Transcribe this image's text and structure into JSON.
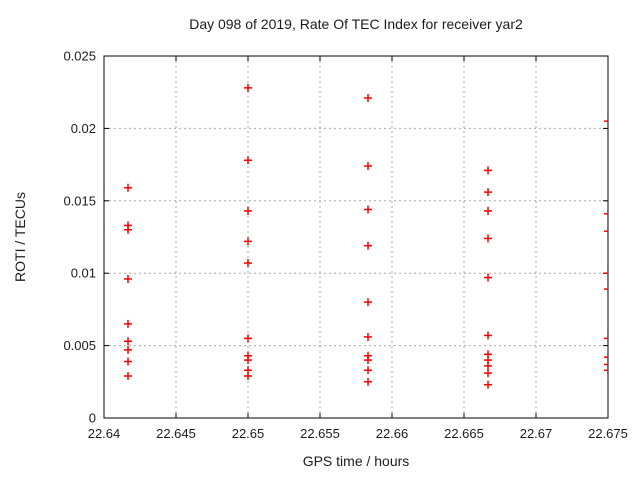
{
  "chart_data": {
    "type": "scatter",
    "title": "Day 098 of 2019, Rate Of TEC Index for receiver yar2",
    "xlabel": "GPS time / hours",
    "ylabel": "ROTI / TECUs",
    "xlim": [
      22.64,
      22.675
    ],
    "ylim": [
      0,
      0.025
    ],
    "xtick_values": [
      22.64,
      22.645,
      22.65,
      22.655,
      22.66,
      22.665,
      22.67,
      22.675
    ],
    "xtick_labels": [
      "22.64",
      "22.645",
      "22.65",
      "22.655",
      "22.66",
      "22.665",
      "22.67",
      "22.675"
    ],
    "ytick_values": [
      0,
      0.005,
      0.01,
      0.015,
      0.02,
      0.025
    ],
    "ytick_labels": [
      "0",
      "0.005",
      "0.01",
      "0.015",
      "0.02",
      "0.025"
    ],
    "grid": true,
    "legend": "none",
    "marker": "plus",
    "marker_color": "#ff0000",
    "series": [
      {
        "name": "ROTI",
        "points": [
          [
            22.641667,
            0.0159
          ],
          [
            22.641667,
            0.0133
          ],
          [
            22.641667,
            0.013
          ],
          [
            22.641667,
            0.0096
          ],
          [
            22.641667,
            0.0065
          ],
          [
            22.641667,
            0.0053
          ],
          [
            22.641667,
            0.0047
          ],
          [
            22.641667,
            0.0039
          ],
          [
            22.641667,
            0.0029
          ],
          [
            22.65,
            0.0228
          ],
          [
            22.65,
            0.0178
          ],
          [
            22.65,
            0.0143
          ],
          [
            22.65,
            0.0122
          ],
          [
            22.65,
            0.0107
          ],
          [
            22.65,
            0.0055
          ],
          [
            22.65,
            0.0043
          ],
          [
            22.65,
            0.004
          ],
          [
            22.65,
            0.0033
          ],
          [
            22.65,
            0.0029
          ],
          [
            22.658333,
            0.0221
          ],
          [
            22.658333,
            0.0174
          ],
          [
            22.658333,
            0.0144
          ],
          [
            22.658333,
            0.0119
          ],
          [
            22.658333,
            0.008
          ],
          [
            22.658333,
            0.0056
          ],
          [
            22.658333,
            0.0043
          ],
          [
            22.658333,
            0.004
          ],
          [
            22.658333,
            0.0033
          ],
          [
            22.658333,
            0.0025
          ],
          [
            22.666667,
            0.0171
          ],
          [
            22.666667,
            0.0156
          ],
          [
            22.666667,
            0.0143
          ],
          [
            22.666667,
            0.0124
          ],
          [
            22.666667,
            0.0097
          ],
          [
            22.666667,
            0.0057
          ],
          [
            22.666667,
            0.0044
          ],
          [
            22.666667,
            0.004
          ],
          [
            22.666667,
            0.0036
          ],
          [
            22.666667,
            0.0031
          ],
          [
            22.666667,
            0.0023
          ],
          [
            22.675,
            0.0205
          ],
          [
            22.675,
            0.0141
          ],
          [
            22.675,
            0.0129
          ],
          [
            22.675,
            0.01
          ],
          [
            22.675,
            0.0089
          ],
          [
            22.675,
            0.0055
          ],
          [
            22.675,
            0.0042
          ],
          [
            22.675,
            0.0037
          ],
          [
            22.675,
            0.0033
          ]
        ]
      }
    ]
  }
}
